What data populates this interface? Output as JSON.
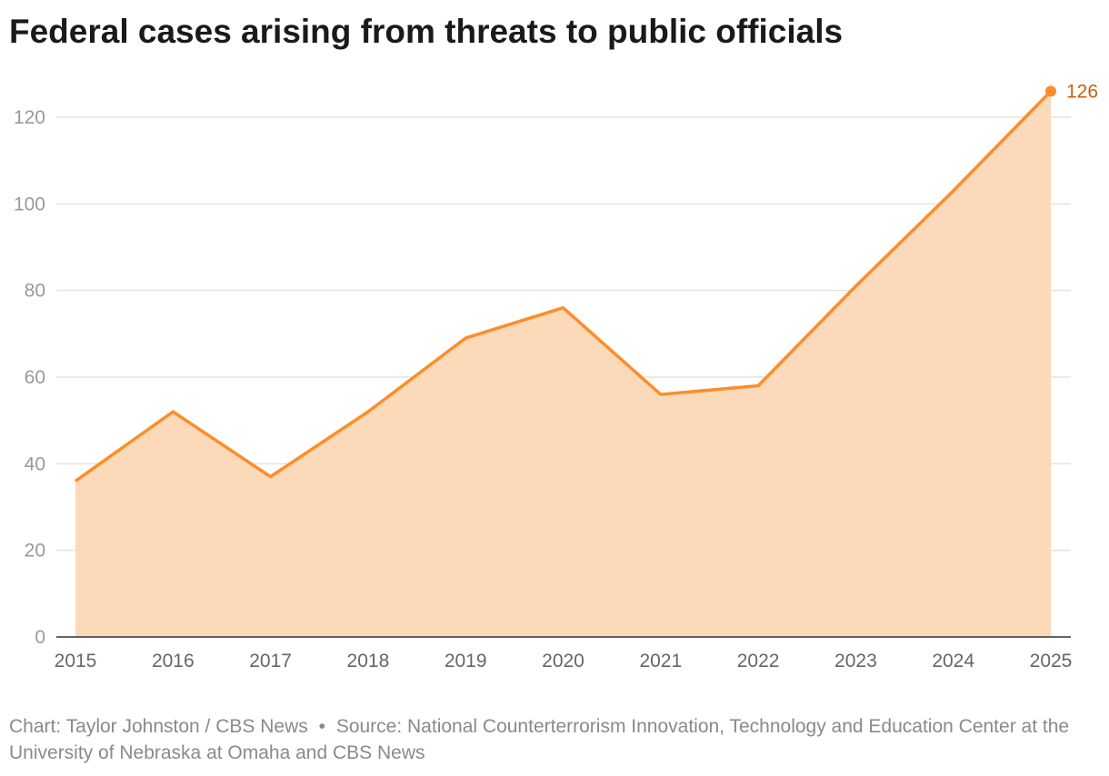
{
  "chart_data": {
    "type": "area",
    "title": "Federal cases arising from threats to public officials",
    "xlabel": "",
    "ylabel": "",
    "x": [
      "2015",
      "2016",
      "2017",
      "2018",
      "2019",
      "2020",
      "2021",
      "2022",
      "2023",
      "2024",
      "2025"
    ],
    "values": [
      36,
      52,
      37,
      52,
      69,
      76,
      56,
      58,
      81,
      103,
      126
    ],
    "ylim": [
      0,
      126
    ],
    "yticks": [
      0,
      20,
      40,
      60,
      80,
      100,
      120
    ],
    "grid": true,
    "annotations": [
      {
        "x": "2025",
        "label": "126"
      }
    ],
    "colors": {
      "line": "#fd8d2a",
      "fill": "#fcd9b8",
      "label": "#c8600f"
    }
  },
  "footer": {
    "credit": "Chart: Taylor Johnston / CBS News",
    "separator": "•",
    "source": "Source: National Counterterrorism Innovation, Technology and Education Center at the University of Nebraska at Omaha and CBS News"
  }
}
